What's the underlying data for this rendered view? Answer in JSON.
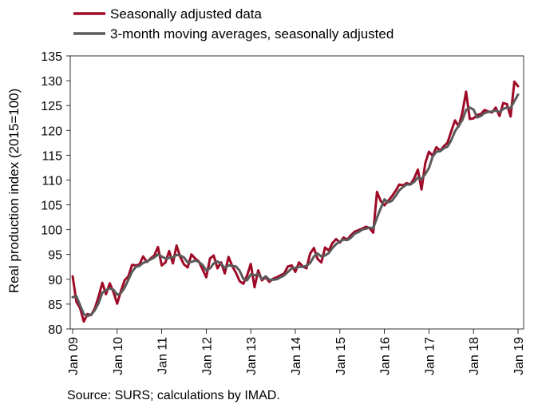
{
  "chart_data": {
    "type": "line",
    "ylabel": "Real production index (2015=100)",
    "ylim": [
      80,
      135
    ],
    "yticks": [
      80,
      85,
      90,
      95,
      100,
      105,
      110,
      115,
      120,
      125,
      130,
      135
    ],
    "x_ticks": [
      "Jan 09",
      "Jan 10",
      "Jan 11",
      "Jan 12",
      "Jan 13",
      "Jan 14",
      "Jan 15",
      "Jan 16",
      "Jan 17",
      "Jan 18",
      "Jan 19"
    ],
    "x_start": "Jan 09",
    "frequency": "monthly",
    "grid": false,
    "legend_position": "top-left",
    "series": [
      {
        "name": "Seasonally adjusted data",
        "color": "#9e0a27",
        "values": [
          90.6,
          85.5,
          84.2,
          81.5,
          83.0,
          82.8,
          84.2,
          86.5,
          89.3,
          87.0,
          89.2,
          87.4,
          85.1,
          87.6,
          89.8,
          90.6,
          92.9,
          92.8,
          93.0,
          94.6,
          93.5,
          94.2,
          94.8,
          96.5,
          92.8,
          93.4,
          95.7,
          93.2,
          96.8,
          94.5,
          93.0,
          92.4,
          95.0,
          94.2,
          93.6,
          92.0,
          90.4,
          94.2,
          94.8,
          92.2,
          93.4,
          91.2,
          94.5,
          92.7,
          91.3,
          89.6,
          89.1,
          90.8,
          93.1,
          88.4,
          91.8,
          89.8,
          90.4,
          89.5,
          90.1,
          90.4,
          90.8,
          91.2,
          92.6,
          92.8,
          91.5,
          93.4,
          92.6,
          92.2,
          95.2,
          96.3,
          94.1,
          93.4,
          96.4,
          95.8,
          97.3,
          98.1,
          97.4,
          98.4,
          98.0,
          98.9,
          99.6,
          99.9,
          100.2,
          100.6,
          100.3,
          99.4,
          107.6,
          105.8,
          104.9,
          105.8,
          106.7,
          107.8,
          109.1,
          108.9,
          109.4,
          109.1,
          110.3,
          112.1,
          108.1,
          113.4,
          115.7,
          114.9,
          116.6,
          115.9,
          116.8,
          117.5,
          119.8,
          122.0,
          120.8,
          123.6,
          127.8,
          122.3,
          122.4,
          123.1,
          123.3,
          124.1,
          123.8,
          123.6,
          124.6,
          122.9,
          125.5,
          125.3,
          122.8,
          129.8,
          128.9
        ]
      },
      {
        "name": "3-month moving averages, seasonally adjusted",
        "color": "#5a5a5a",
        "values": [
          86.4,
          86.6,
          84.8,
          83.0,
          82.6,
          82.9,
          83.8,
          85.2,
          87.3,
          87.8,
          88.2,
          87.9,
          86.9,
          87.2,
          88.3,
          89.9,
          91.5,
          92.5,
          92.7,
          93.3,
          93.6,
          94.0,
          94.4,
          95.0,
          94.6,
          94.2,
          94.3,
          94.4,
          94.9,
          94.8,
          94.4,
          93.4,
          93.5,
          93.8,
          93.5,
          92.9,
          91.8,
          92.2,
          93.2,
          93.6,
          93.1,
          92.3,
          92.8,
          92.7,
          92.6,
          91.7,
          90.1,
          89.8,
          91.0,
          90.8,
          91.1,
          90.0,
          90.6,
          89.9,
          89.9,
          90.0,
          90.4,
          90.8,
          91.5,
          92.2,
          92.3,
          92.5,
          92.5,
          92.7,
          93.3,
          94.6,
          95.2,
          94.6,
          94.8,
          95.3,
          96.3,
          97.1,
          97.6,
          98.0,
          97.9,
          98.4,
          99.2,
          99.5,
          100.0,
          100.2,
          100.4,
          100.3,
          102.4,
          104.3,
          106.1,
          105.5,
          105.8,
          106.8,
          107.9,
          108.6,
          109.1,
          109.1,
          109.6,
          110.5,
          110.2,
          111.2,
          112.4,
          114.7,
          115.7,
          115.8,
          116.4,
          116.7,
          118.0,
          119.8,
          120.9,
          122.1,
          124.1,
          124.6,
          124.2,
          122.6,
          122.9,
          123.5,
          123.7,
          123.8,
          124.0,
          123.7,
          124.3,
          124.6,
          124.5,
          125.9,
          127.2
        ]
      }
    ]
  },
  "source_note": "Source: SURS; calculations by IMAD."
}
